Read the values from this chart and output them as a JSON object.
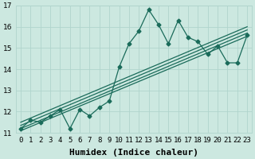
{
  "xlabel": "Humidex (Indice chaleur)",
  "ylabel": "",
  "bg_color": "#cce8e0",
  "line_color": "#1a6b5a",
  "grid_color": "#b0d4cc",
  "xlim": [
    -0.5,
    23.5
  ],
  "ylim": [
    11,
    17
  ],
  "yticks": [
    11,
    12,
    13,
    14,
    15,
    16,
    17
  ],
  "xtick_labels": [
    "0",
    "1",
    "2",
    "3",
    "4",
    "5",
    "6",
    "7",
    "8",
    "9",
    "10",
    "11",
    "12",
    "13",
    "14",
    "15",
    "16",
    "17",
    "18",
    "19",
    "20",
    "21",
    "22",
    "23"
  ],
  "data_x": [
    0,
    1,
    2,
    3,
    4,
    5,
    6,
    7,
    8,
    9,
    10,
    11,
    12,
    13,
    14,
    15,
    16,
    17,
    18,
    19,
    20,
    21,
    22,
    23
  ],
  "data_y": [
    11.2,
    11.6,
    11.5,
    11.8,
    12.1,
    11.2,
    12.1,
    11.8,
    12.2,
    12.5,
    14.1,
    15.2,
    15.8,
    16.8,
    16.1,
    15.2,
    16.3,
    15.5,
    15.3,
    14.7,
    15.1,
    14.3,
    14.3,
    15.6
  ],
  "reg_lines": [
    {
      "x0": 0,
      "y0": 11.1,
      "x1": 23,
      "y1": 15.55
    },
    {
      "x0": 0,
      "y0": 11.2,
      "x1": 23,
      "y1": 15.7
    },
    {
      "x0": 0,
      "y0": 11.35,
      "x1": 23,
      "y1": 15.85
    },
    {
      "x0": 0,
      "y0": 11.5,
      "x1": 23,
      "y1": 16.0
    }
  ],
  "marker": "D",
  "markersize": 2.5,
  "linewidth": 0.9,
  "reg_linewidth": 0.9,
  "xlabel_fontsize": 8,
  "tick_fontsize": 6.5,
  "fig_width": 3.2,
  "fig_height": 2.0,
  "dpi": 100
}
